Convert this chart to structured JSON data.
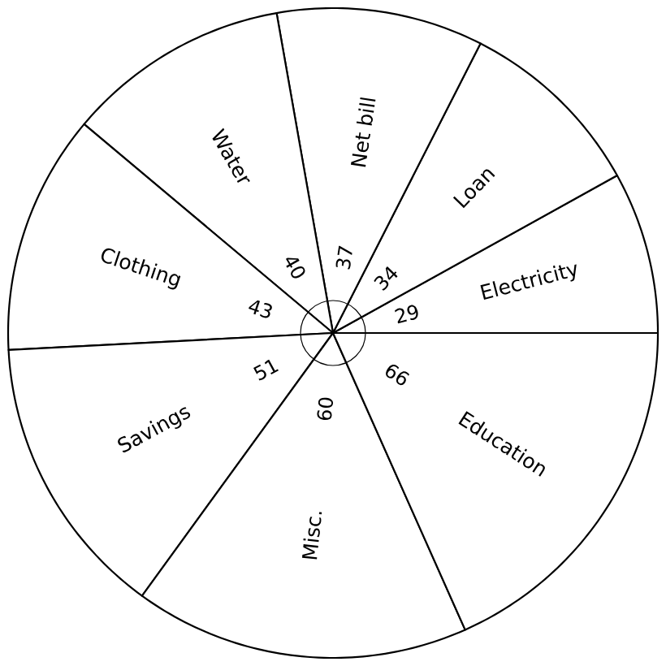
{
  "chart_data": {
    "type": "pie",
    "categories": [
      "Electricity",
      "Loan",
      "Net bill",
      "Water",
      "Clothing",
      "Savings",
      "Misc.",
      "Education"
    ],
    "values": [
      29,
      34,
      37,
      40,
      43,
      51,
      60,
      66
    ],
    "colors": [
      "#ffffff",
      "#ffffff",
      "#ffffff",
      "#ffffff",
      "#ffffff",
      "#ffffff",
      "#ffffff",
      "#ffffff"
    ],
    "data_labels": true
  }
}
